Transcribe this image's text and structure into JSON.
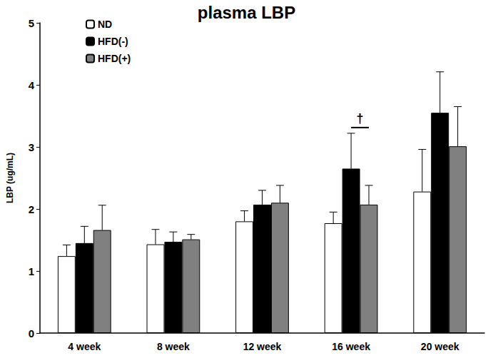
{
  "chart_data": {
    "type": "bar",
    "title": "plasma LBP",
    "y_label": "LBP (ug/mL)",
    "categories": [
      "4 week",
      "8 week",
      "12 week",
      "16 week",
      "20 week"
    ],
    "series": [
      {
        "name": "ND",
        "color": "#ffffff",
        "values": [
          1.24,
          1.43,
          1.8,
          1.77,
          2.28
        ],
        "errors": [
          0.18,
          0.24,
          0.17,
          0.18,
          0.68
        ]
      },
      {
        "name": "HFD(-)",
        "color": "#000000",
        "values": [
          1.45,
          1.47,
          2.07,
          2.65,
          3.55
        ],
        "errors": [
          0.27,
          0.16,
          0.23,
          0.57,
          0.66
        ]
      },
      {
        "name": "HFD(+)",
        "color": "#808080",
        "values": [
          1.66,
          1.51,
          2.1,
          2.07,
          3.01
        ],
        "errors": [
          0.4,
          0.08,
          0.28,
          0.31,
          0.64
        ]
      }
    ],
    "annotations": [
      {
        "text": "†",
        "category": "16 week",
        "between": [
          "HFD(-)",
          "HFD(+)"
        ]
      }
    ],
    "ylim": [
      0,
      5
    ],
    "yticks": [
      0,
      1,
      2,
      3,
      4,
      5
    ],
    "grid": false,
    "legend": "upper left"
  }
}
